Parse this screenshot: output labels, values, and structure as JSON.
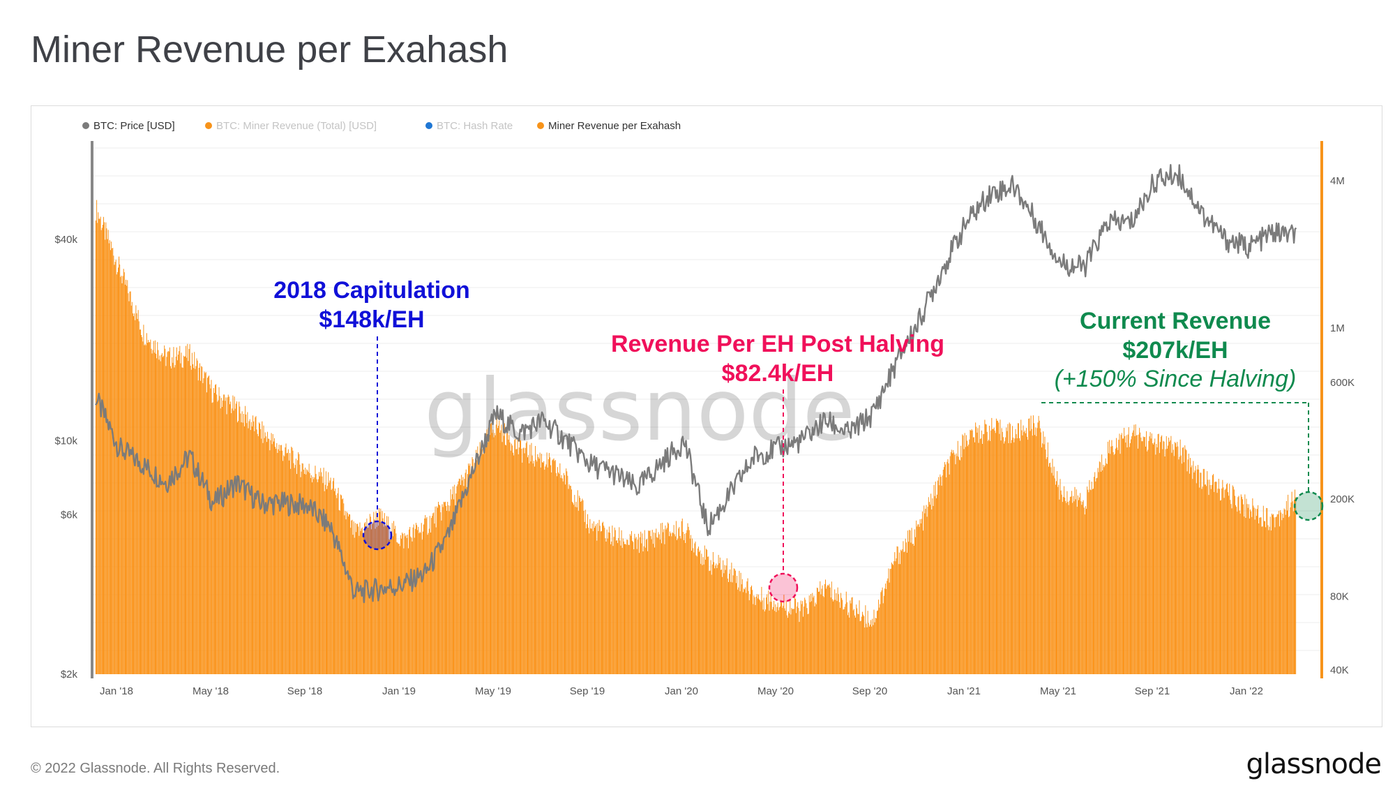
{
  "title": "Miner Revenue per Exahash",
  "footer": {
    "copyright": "© 2022 Glassnode. All Rights Reserved.",
    "logo": "glassnode"
  },
  "watermark": "glassnode",
  "colors": {
    "price": "#7b7b7b",
    "revenue_fill": "#f7931a",
    "revenue_bar": "#ff8c0a",
    "hashrate": "#1f77d4",
    "blue_annotation": "#1010d8",
    "red_annotation": "#f0105a",
    "green_annotation": "#0f8a4e"
  },
  "chart_data": {
    "type": "area",
    "legend": [
      {
        "name": "BTC: Price [USD]",
        "color": "#7b7b7b",
        "active": true
      },
      {
        "name": "BTC: Miner Revenue (Total) [USD]",
        "color": "#f7931a",
        "active": false
      },
      {
        "name": "BTC: Hash Rate",
        "color": "#1f77d4",
        "active": false
      },
      {
        "name": "Miner Revenue per Exahash",
        "color": "#f7931a",
        "active": true
      }
    ],
    "legend_position": "top-left",
    "x_ticks": [
      "Jan '18",
      "May '18",
      "Sep '18",
      "Jan '19",
      "May '19",
      "Sep '19",
      "Jan '20",
      "May '20",
      "Sep '20",
      "Jan '21",
      "May '21",
      "Sep '21",
      "Jan '22"
    ],
    "y_left": {
      "scale": "log",
      "ticks": [
        "$2k",
        "$6k",
        "$10k",
        "$40k"
      ],
      "tick_values": [
        2000,
        6000,
        10000,
        40000
      ]
    },
    "y_right": {
      "scale": "log",
      "ticks": [
        "40K",
        "80K",
        "200K",
        "600K",
        "1M",
        "4M"
      ],
      "tick_values": [
        40000,
        80000,
        200000,
        600000,
        1000000,
        4000000
      ]
    },
    "grid": true,
    "series": [
      {
        "name": "BTC: Price [USD]",
        "axis": "left",
        "x": [
          "Jan '18",
          "Feb '18",
          "Mar '18",
          "Apr '18",
          "May '18",
          "Jun '18",
          "Jul '18",
          "Aug '18",
          "Sep '18",
          "Oct '18",
          "Nov '18",
          "Dec '18",
          "Jan '19",
          "Feb '19",
          "Mar '19",
          "Apr '19",
          "May '19",
          "Jun '19",
          "Jul '19",
          "Aug '19",
          "Sep '19",
          "Oct '19",
          "Nov '19",
          "Dec '19",
          "Jan '20",
          "Feb '20",
          "Mar '20",
          "Apr '20",
          "May '20",
          "Jun '20",
          "Jul '20",
          "Aug '20",
          "Sep '20",
          "Oct '20",
          "Nov '20",
          "Dec '20",
          "Jan '21",
          "Feb '21",
          "Mar '21",
          "Apr '21",
          "May '21",
          "Jun '21",
          "Jul '21",
          "Aug '21",
          "Sep '21",
          "Oct '21",
          "Nov '21",
          "Dec '21",
          "Jan '22",
          "Feb '22",
          "Mar '22",
          "Apr '22"
        ],
        "values": [
          13500,
          9500,
          8500,
          7500,
          9000,
          6500,
          7500,
          6500,
          6500,
          6400,
          5500,
          3500,
          3600,
          3700,
          4000,
          5200,
          8000,
          12000,
          10500,
          11500,
          10000,
          8500,
          8000,
          7200,
          8500,
          10000,
          5500,
          7000,
          9000,
          9500,
          10000,
          11500,
          10500,
          12000,
          17000,
          23000,
          33000,
          45000,
          55000,
          58000,
          45000,
          34000,
          33000,
          45000,
          45000,
          60000,
          63000,
          48000,
          40000,
          38000,
          42000,
          41000
        ]
      },
      {
        "name": "Miner Revenue per Exahash",
        "axis": "right",
        "x": [
          "Jan '18",
          "Feb '18",
          "Mar '18",
          "Apr '18",
          "May '18",
          "Jun '18",
          "Jul '18",
          "Aug '18",
          "Sep '18",
          "Oct '18",
          "Nov '18",
          "Dec '18",
          "Jan '19",
          "Feb '19",
          "Mar '19",
          "Apr '19",
          "May '19",
          "Jun '19",
          "Jul '19",
          "Aug '19",
          "Sep '19",
          "Oct '19",
          "Nov '19",
          "Dec '19",
          "Jan '20",
          "Feb '20",
          "Mar '20",
          "Apr '20",
          "May '20",
          "Jun '20",
          "Jul '20",
          "Aug '20",
          "Sep '20",
          "Oct '20",
          "Nov '20",
          "Dec '20",
          "Jan '21",
          "Feb '21",
          "Mar '21",
          "Apr '21",
          "May '21",
          "Jun '21",
          "Jul '21",
          "Aug '21",
          "Sep '21",
          "Oct '21",
          "Nov '21",
          "Dec '21",
          "Jan '22",
          "Feb '22",
          "Mar '22",
          "Apr '22"
        ],
        "values": [
          3200000,
          1800000,
          1000000,
          780000,
          800000,
          560000,
          480000,
          390000,
          320000,
          270000,
          240000,
          148000,
          175000,
          140000,
          160000,
          200000,
          280000,
          420000,
          330000,
          300000,
          250000,
          160000,
          145000,
          135000,
          150000,
          155000,
          115000,
          105000,
          82400,
          78000,
          72000,
          90000,
          76000,
          66000,
          120000,
          160000,
          260000,
          370000,
          400000,
          380000,
          420000,
          220000,
          200000,
          330000,
          380000,
          350000,
          330000,
          250000,
          220000,
          190000,
          170000,
          207000
        ]
      }
    ],
    "annotations": [
      {
        "title": "2018 Capitulation",
        "value": "$148k/EH",
        "color": "#1010d8",
        "x": "Dec '18",
        "y": 148000
      },
      {
        "title": "Revenue Per EH Post Halving",
        "value": "$82.4k/EH",
        "color": "#f0105a",
        "x": "May '20",
        "y": 82400
      },
      {
        "title": "Current Revenue",
        "value": "$207k/EH",
        "note": "(+150% Since Halving)",
        "color": "#0f8a4e",
        "x": "Apr '22",
        "y": 207000
      }
    ]
  }
}
